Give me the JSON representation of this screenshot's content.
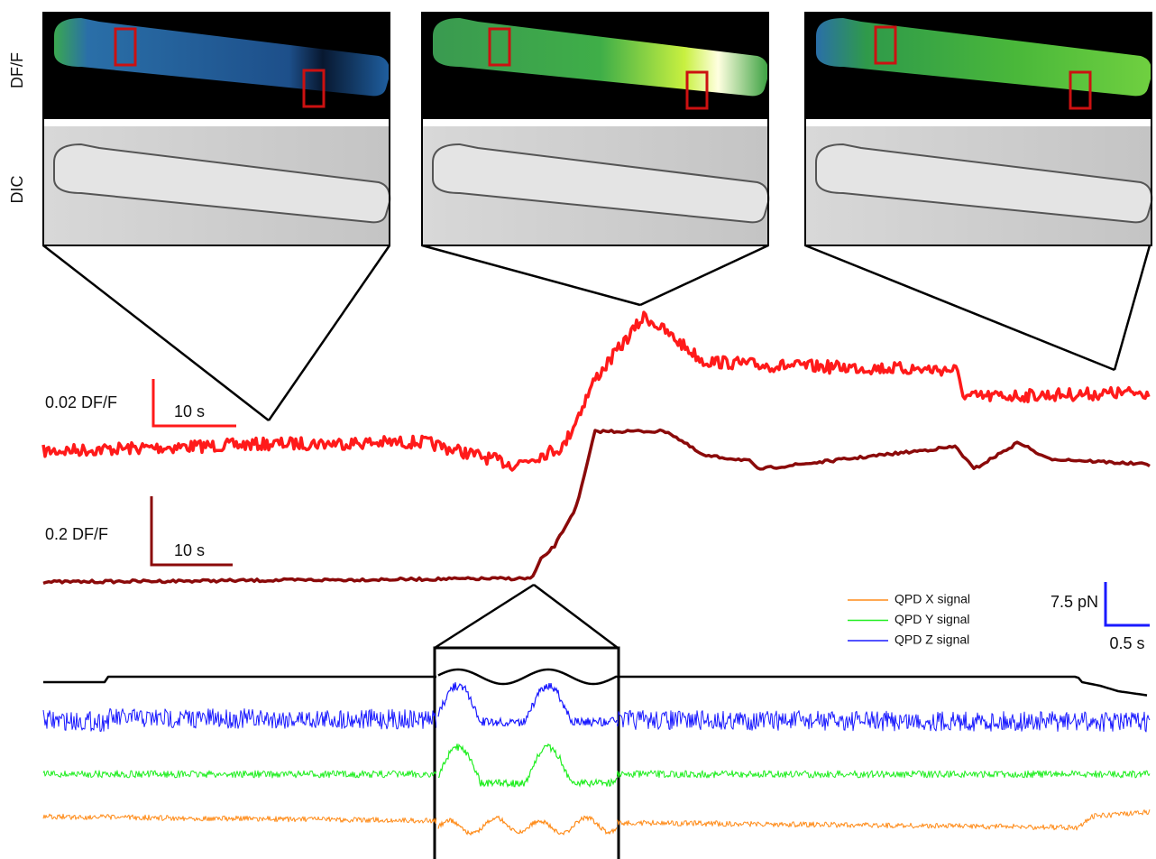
{
  "row_labels": [
    "DF/F",
    "DIC"
  ],
  "scale_bars": [
    {
      "amplitude": "0.02 DF/F",
      "time": "10 s",
      "color": "#ff1a1a"
    },
    {
      "amplitude": "0.2 DF/F",
      "time": "10 s",
      "color": "#8b0a0a"
    },
    {
      "amplitude": "7.5 pN",
      "time": "0.5 s",
      "color": "#1a1aff"
    }
  ],
  "legend": [
    {
      "name": "QPD X signal",
      "color": "#ff8c1a"
    },
    {
      "name": "QPD Y signal",
      "color": "#22ee22"
    },
    {
      "name": "QPD Z signal",
      "color": "#1a1aff"
    }
  ]
}
